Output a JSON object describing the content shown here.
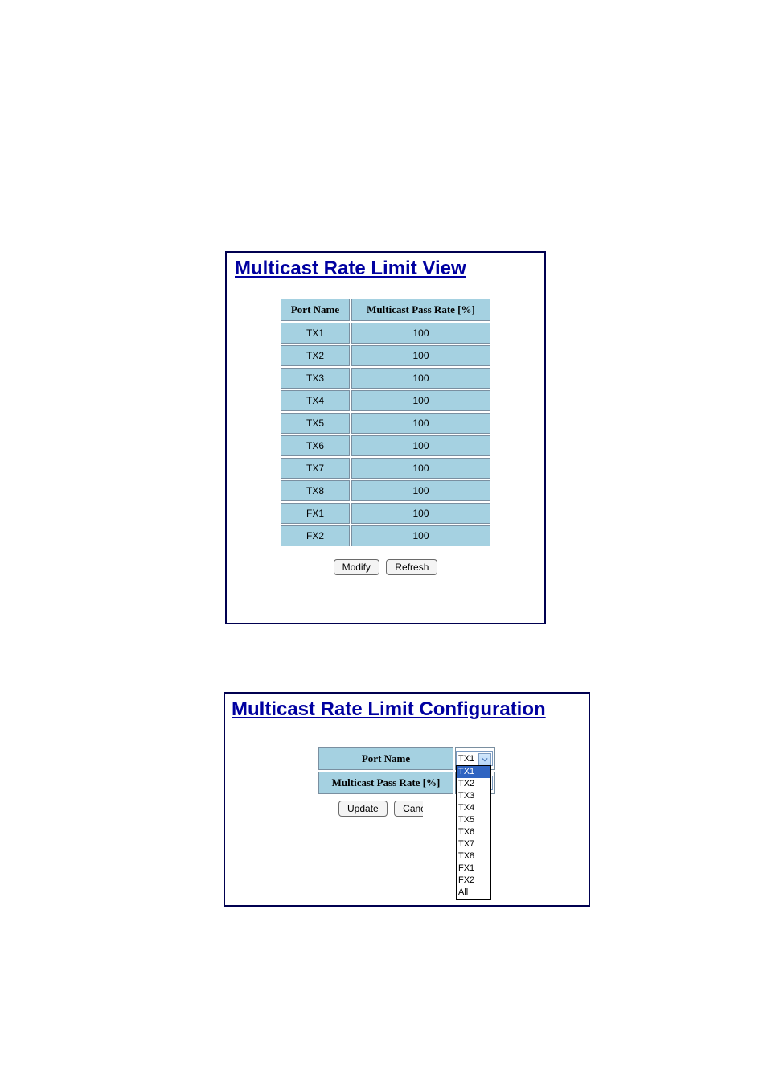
{
  "view": {
    "title": "Multicast Rate Limit View",
    "columns": {
      "port": "Port Name",
      "rate": "Multicast Pass Rate [%]"
    },
    "rows": [
      {
        "port": "TX1",
        "rate": "100"
      },
      {
        "port": "TX2",
        "rate": "100"
      },
      {
        "port": "TX3",
        "rate": "100"
      },
      {
        "port": "TX4",
        "rate": "100"
      },
      {
        "port": "TX5",
        "rate": "100"
      },
      {
        "port": "TX6",
        "rate": "100"
      },
      {
        "port": "TX7",
        "rate": "100"
      },
      {
        "port": "TX8",
        "rate": "100"
      },
      {
        "port": "FX1",
        "rate": "100"
      },
      {
        "port": "FX2",
        "rate": "100"
      }
    ],
    "buttons": {
      "modify": "Modify",
      "refresh": "Refresh"
    }
  },
  "config": {
    "title": "Multicast Rate Limit Configuration",
    "labels": {
      "port": "Port Name",
      "rate": "Multicast Pass Rate [%]"
    },
    "port_selected": "TX1",
    "port_options": [
      "TX1",
      "TX2",
      "TX3",
      "TX4",
      "TX5",
      "TX6",
      "TX7",
      "TX8",
      "FX1",
      "FX2",
      "All"
    ],
    "rate_value": "",
    "buttons": {
      "update": "Update",
      "cancel": "Cancel"
    }
  },
  "style": {
    "heading_color": "#0000a0",
    "table_header_bg": "#a5d1e1",
    "table_cell_bg": "#a5d1e1",
    "table_border": "#7a8fa0",
    "dropdown_highlight_bg": "#2f64c1",
    "dropdown_highlight_fg": "#ffffff",
    "panel_border": "#000050",
    "button_bg": "#f4f4f4",
    "button_border": "#6a6a6a"
  }
}
